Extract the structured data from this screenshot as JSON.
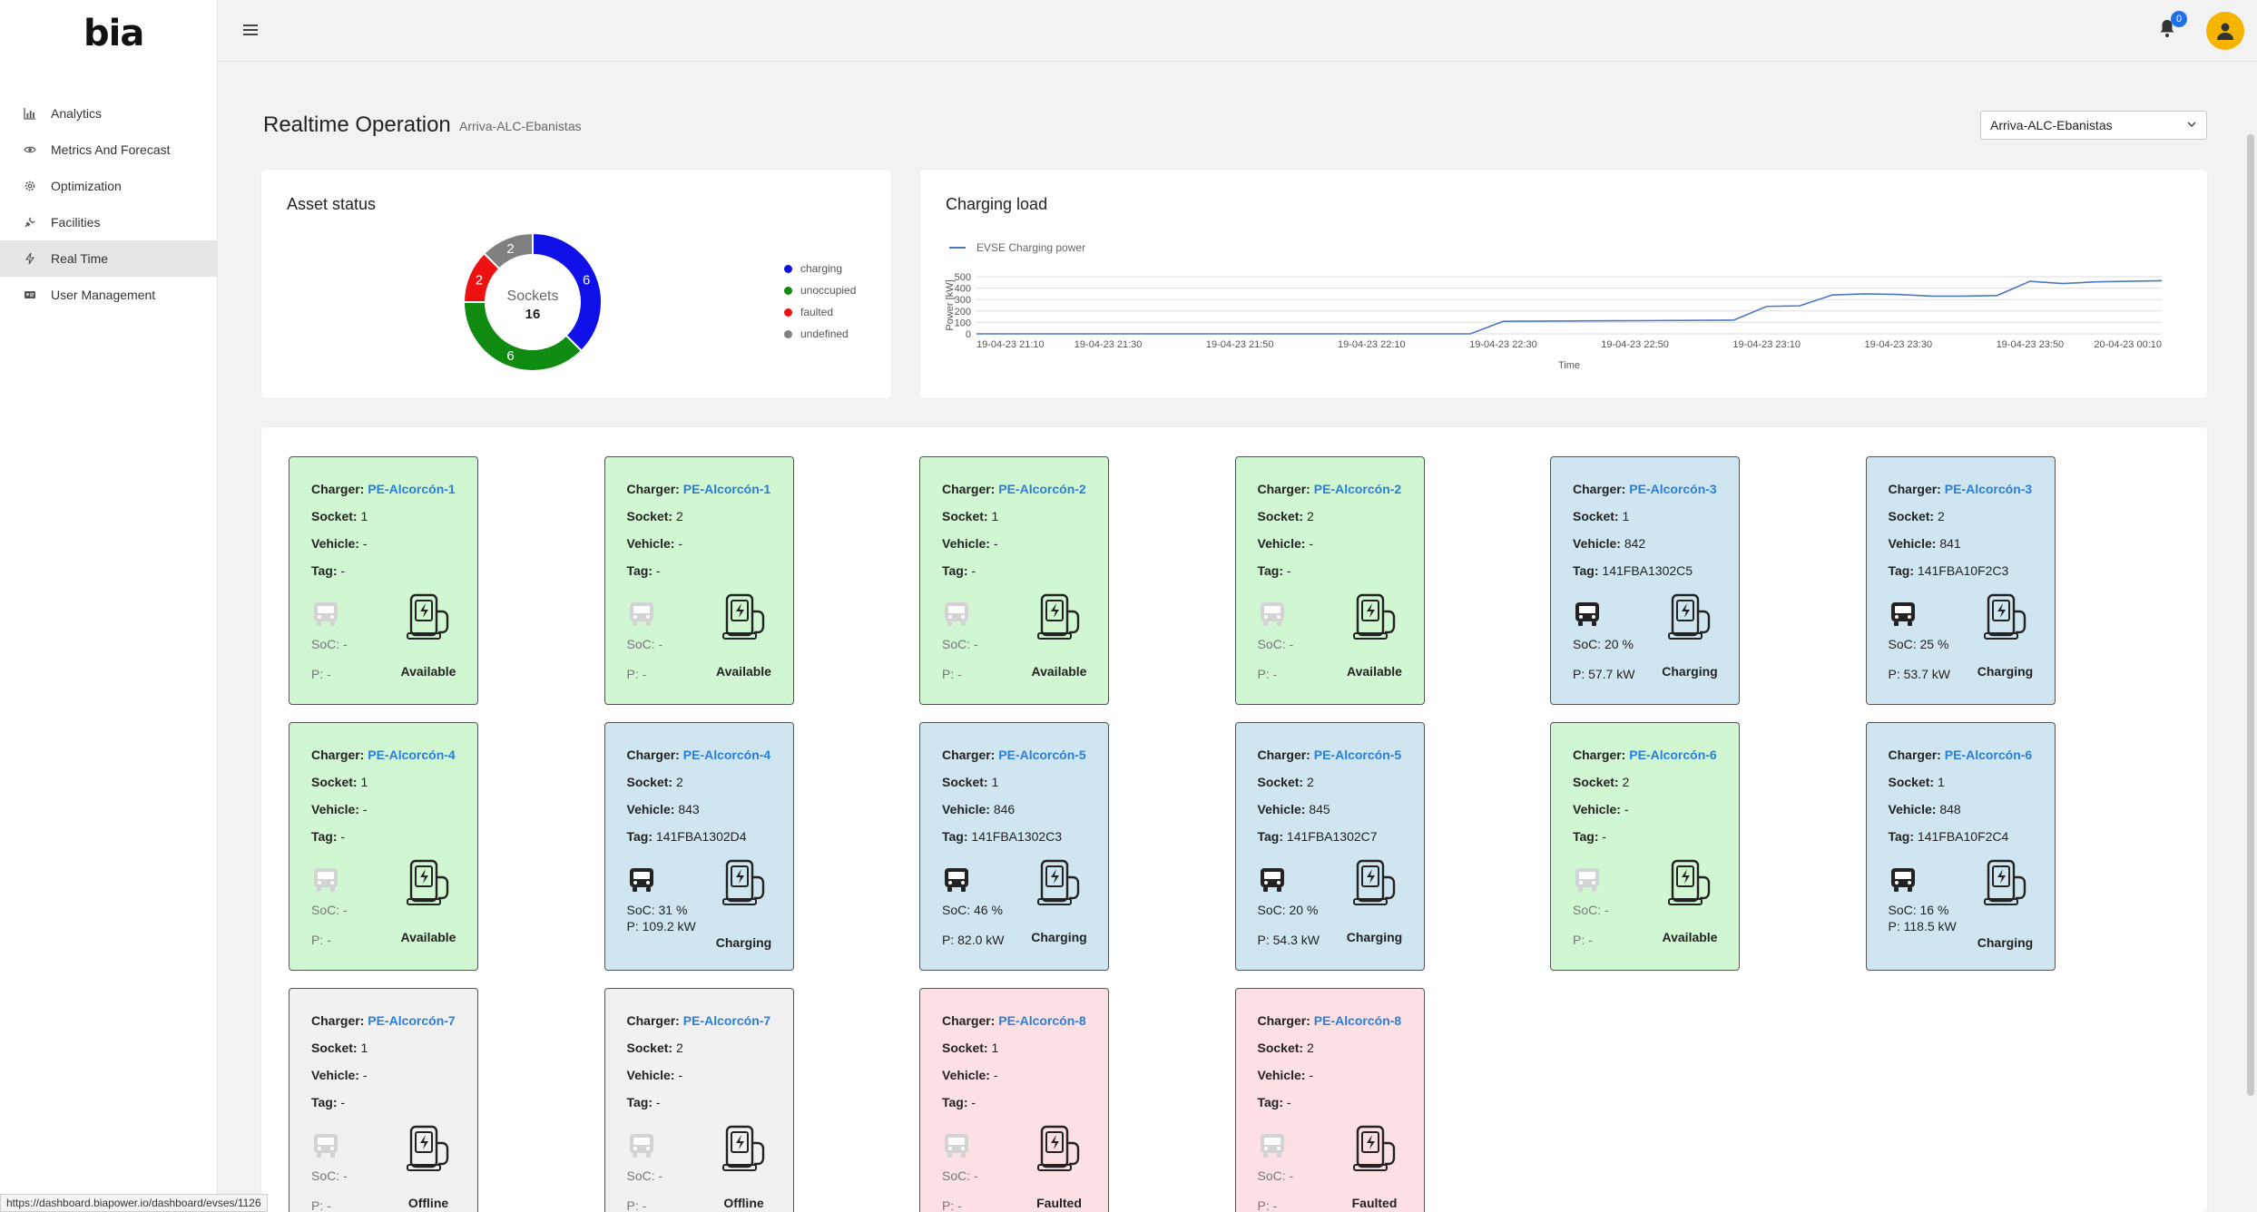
{
  "brand": {
    "logo": "bia"
  },
  "sidebar": {
    "items": [
      {
        "label": "Analytics",
        "icon": "bar-chart-icon"
      },
      {
        "label": "Metrics And Forecast",
        "icon": "eye-icon"
      },
      {
        "label": "Optimization",
        "icon": "gear-icon"
      },
      {
        "label": "Facilities",
        "icon": "plug-icon"
      },
      {
        "label": "Real Time",
        "icon": "bolt-icon",
        "active": true
      },
      {
        "label": "User Management",
        "icon": "id-card-icon"
      }
    ]
  },
  "header": {
    "notifications_count": "0"
  },
  "page": {
    "title": "Realtime Operation",
    "subtitle": "Arriva-ALC-Ebanistas",
    "site_select": "Arriva-ALC-Ebanistas"
  },
  "asset_status": {
    "title": "Asset status",
    "center_label": "Sockets",
    "total": "16",
    "slices": [
      {
        "label": "charging",
        "value": 6,
        "color": "#1010e8"
      },
      {
        "label": "unoccupied",
        "value": 6,
        "color": "#118a11"
      },
      {
        "label": "faulted",
        "value": 2,
        "color": "#ee1111"
      },
      {
        "label": "undefined",
        "value": 2,
        "color": "#808080"
      }
    ]
  },
  "chart_data": {
    "type": "line",
    "title": "Charging load",
    "xlabel": "Time",
    "ylabel": "Power [kW]",
    "ylim": [
      0,
      500
    ],
    "yticks": [
      "500",
      "400",
      "300",
      "200",
      "100",
      "0"
    ],
    "xticks": [
      "19-04-23 21:10",
      "19-04-23 21:30",
      "19-04-23 21:50",
      "19-04-23 22:10",
      "19-04-23 22:30",
      "19-04-23 22:50",
      "19-04-23 23:10",
      "19-04-23 23:30",
      "19-04-23 23:50",
      "20-04-23 00:10"
    ],
    "color": "#4a78c8",
    "series": [
      {
        "name": "EVSE Charging power",
        "x": [
          "19-04-23 21:10",
          "19-04-23 22:20",
          "19-04-23 22:25",
          "19-04-23 22:30",
          "19-04-23 22:50",
          "19-04-23 23:05",
          "19-04-23 23:10",
          "19-04-23 23:15",
          "19-04-23 23:20",
          "19-04-23 23:25",
          "19-04-23 23:30",
          "19-04-23 23:35",
          "19-04-23 23:40",
          "19-04-23 23:45",
          "19-04-23 23:50",
          "19-04-23 23:55",
          "20-04-23 00:00",
          "20-04-23 00:05",
          "20-04-23 00:10"
        ],
        "values": [
          0,
          0,
          0,
          110,
          115,
          120,
          240,
          245,
          340,
          350,
          345,
          330,
          330,
          335,
          460,
          440,
          455,
          460,
          465
        ]
      }
    ]
  },
  "labels": {
    "charger": "Charger:",
    "socket": "Socket:",
    "vehicle": "Vehicle:",
    "tag": "Tag:",
    "soc": "SoC:",
    "power": "P:"
  },
  "evses": [
    {
      "charger": "PE-Alcorcón-1",
      "socket": "1",
      "vehicle": "-",
      "tag": "-",
      "soc": "-",
      "power": "-",
      "status": "Available",
      "state": "available"
    },
    {
      "charger": "PE-Alcorcón-1",
      "socket": "2",
      "vehicle": "-",
      "tag": "-",
      "soc": "-",
      "power": "-",
      "status": "Available",
      "state": "available"
    },
    {
      "charger": "PE-Alcorcón-2",
      "socket": "1",
      "vehicle": "-",
      "tag": "-",
      "soc": "-",
      "power": "-",
      "status": "Available",
      "state": "available"
    },
    {
      "charger": "PE-Alcorcón-2",
      "socket": "2",
      "vehicle": "-",
      "tag": "-",
      "soc": "-",
      "power": "-",
      "status": "Available",
      "state": "available"
    },
    {
      "charger": "PE-Alcorcón-3",
      "socket": "1",
      "vehicle": "842",
      "tag": "141FBA1302C5",
      "soc": "20 %",
      "power": "57.7 kW",
      "status": "Charging",
      "state": "charging"
    },
    {
      "charger": "PE-Alcorcón-3",
      "socket": "2",
      "vehicle": "841",
      "tag": "141FBA10F2C3",
      "soc": "25 %",
      "power": "53.7 kW",
      "status": "Charging",
      "state": "charging"
    },
    {
      "charger": "PE-Alcorcón-4",
      "socket": "1",
      "vehicle": "-",
      "tag": "-",
      "soc": "-",
      "power": "-",
      "status": "Available",
      "state": "available"
    },
    {
      "charger": "PE-Alcorcón-4",
      "socket": "2",
      "vehicle": "843",
      "tag": "141FBA1302D4",
      "soc": "31 %",
      "power": "109.2 kW",
      "status": "Charging",
      "state": "charging",
      "wrap": true
    },
    {
      "charger": "PE-Alcorcón-5",
      "socket": "1",
      "vehicle": "846",
      "tag": "141FBA1302C3",
      "soc": "46 %",
      "power": "82.0 kW",
      "status": "Charging",
      "state": "charging"
    },
    {
      "charger": "PE-Alcorcón-5",
      "socket": "2",
      "vehicle": "845",
      "tag": "141FBA1302C7",
      "soc": "20 %",
      "power": "54.3 kW",
      "status": "Charging",
      "state": "charging"
    },
    {
      "charger": "PE-Alcorcón-6",
      "socket": "2",
      "vehicle": "-",
      "tag": "-",
      "soc": "-",
      "power": "-",
      "status": "Available",
      "state": "available"
    },
    {
      "charger": "PE-Alcorcón-6",
      "socket": "1",
      "vehicle": "848",
      "tag": "141FBA10F2C4",
      "soc": "16 %",
      "power": "118.5 kW",
      "status": "Charging",
      "state": "charging",
      "wrap": true
    },
    {
      "charger": "PE-Alcorcón-7",
      "socket": "1",
      "vehicle": "-",
      "tag": "-",
      "soc": "-",
      "power": "-",
      "status": "Offline",
      "state": "offline"
    },
    {
      "charger": "PE-Alcorcón-7",
      "socket": "2",
      "vehicle": "-",
      "tag": "-",
      "soc": "-",
      "power": "-",
      "status": "Offline",
      "state": "offline"
    },
    {
      "charger": "PE-Alcorcón-8",
      "socket": "1",
      "vehicle": "-",
      "tag": "-",
      "soc": "-",
      "power": "-",
      "status": "Faulted",
      "state": "faulted"
    },
    {
      "charger": "PE-Alcorcón-8",
      "socket": "2",
      "vehicle": "-",
      "tag": "-",
      "soc": "-",
      "power": "-",
      "status": "Faulted",
      "state": "faulted"
    }
  ],
  "status_bar": {
    "url": "https://dashboard.biapower.io/dashboard/evses/1126"
  }
}
